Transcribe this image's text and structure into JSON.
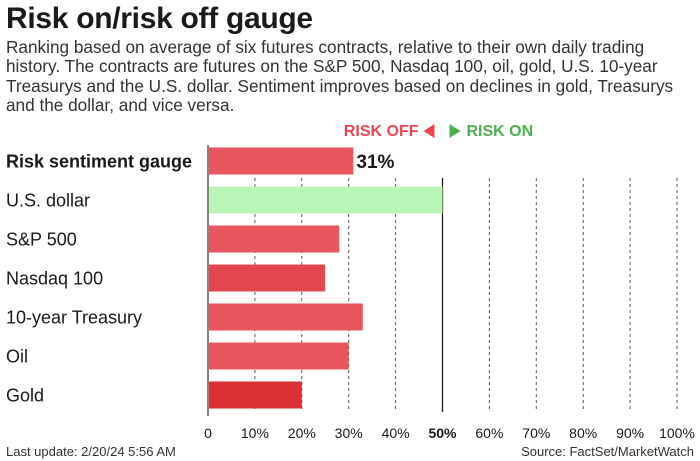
{
  "title": "Risk on/risk off gauge",
  "subtitle": "Ranking based on average of six futures contracts, relative to their own daily trading history. The contracts are futures on the S&P 500, Nasdaq 100, oil, gold, U.S. 10-year Treasurys and the U.S. dollar. Sentiment improves based on declines in gold, Treasurys and the dollar, and vice versa.",
  "legend": {
    "risk_off_label": "RISK OFF",
    "risk_on_label": "RISK ON",
    "risk_off_color": "#e8474f",
    "risk_on_color": "#4caf50"
  },
  "chart_data": {
    "type": "bar",
    "orientation": "horizontal",
    "categories": [
      "Risk sentiment gauge",
      "U.S. dollar",
      "S&P 500",
      "Nasdaq 100",
      "10-year Treasury",
      "Oil",
      "Gold"
    ],
    "values": [
      0.31,
      0.5,
      0.28,
      0.25,
      0.33,
      0.3,
      0.2
    ],
    "value_label_text": "31%",
    "value_label_index": 0,
    "bold_category_index": 0,
    "bar_colors": [
      "#e8555c",
      "#b9f5b6",
      "#e8555c",
      "#e2474f",
      "#e8555c",
      "#e8555c",
      "#d93034"
    ],
    "x_ticks": [
      0,
      0.1,
      0.2,
      0.3,
      0.4,
      0.5,
      0.6,
      0.7,
      0.8,
      0.9,
      1.0
    ],
    "x_tick_labels": [
      "0",
      "10%",
      "20%",
      "30%",
      "40%",
      "50%",
      "60%",
      "70%",
      "80%",
      "90%",
      "100%"
    ],
    "bold_tick_index": 5,
    "xlim": [
      0,
      1
    ],
    "grid": "vertical dashed",
    "midline": 0.5
  },
  "footer": {
    "last_update": "Last update: 2/20/24 5:56 AM",
    "source": "Source: FactSet/MarketWatch"
  }
}
